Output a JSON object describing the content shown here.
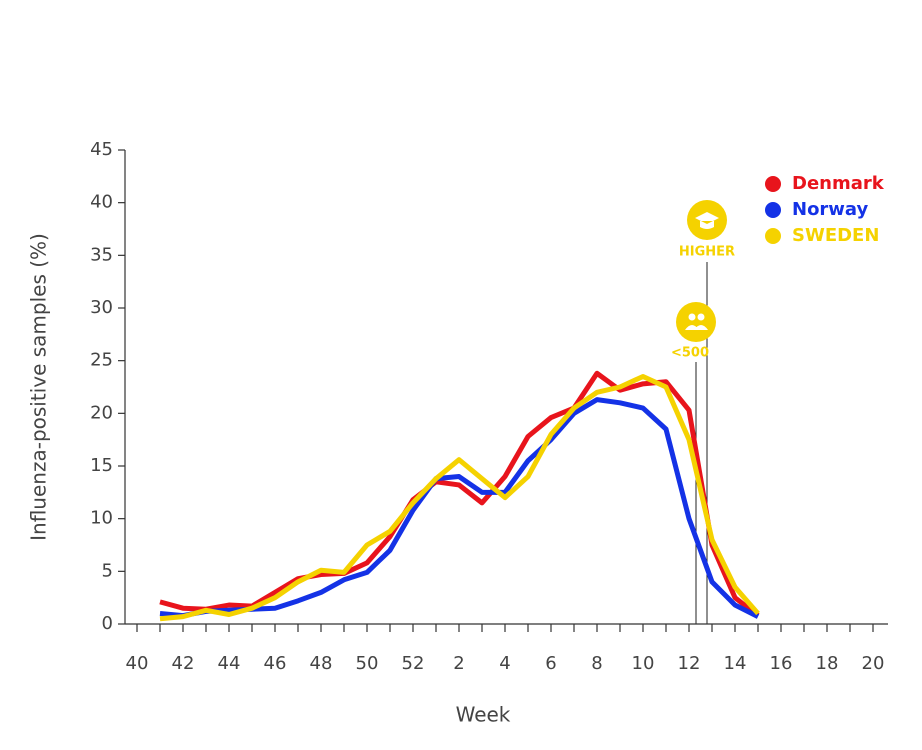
{
  "chart_data": {
    "type": "line",
    "y_label": "Influenza-positive samples (%)",
    "x_label": "Week",
    "categories": [
      "40",
      null,
      "42",
      null,
      "44",
      null,
      "46",
      null,
      "48",
      null,
      "50",
      null,
      "52",
      null,
      "2",
      null,
      "4",
      null,
      "6",
      null,
      "8",
      null,
      "10",
      null,
      "12",
      null,
      "14",
      null,
      "16",
      null,
      "18",
      null,
      "20"
    ],
    "series": [
      {
        "name": "Denmark",
        "color": "#e8141c",
        "values": [
          null,
          2.1,
          1.5,
          1.4,
          1.8,
          1.7,
          3.0,
          4.3,
          4.7,
          4.8,
          5.8,
          8.3,
          11.8,
          13.5,
          13.2,
          11.5,
          14.0,
          17.8,
          19.6,
          20.5,
          23.8,
          22.2,
          22.8,
          23.0,
          20.3,
          7.5,
          2.5,
          0.8,
          null,
          null,
          null,
          null,
          null
        ]
      },
      {
        "name": "Norway",
        "color": "#1432e6",
        "values": [
          null,
          1.0,
          0.8,
          1.2,
          1.3,
          1.4,
          1.5,
          2.2,
          3.0,
          4.2,
          4.9,
          7.0,
          10.8,
          13.8,
          14.0,
          12.5,
          12.5,
          15.5,
          17.5,
          20.0,
          21.3,
          21.0,
          20.5,
          18.5,
          10.0,
          4.0,
          1.8,
          0.7,
          null,
          null,
          null,
          null,
          null
        ]
      },
      {
        "name": "SWEDEN",
        "color": "#f5d200",
        "values": [
          null,
          0.5,
          0.7,
          1.3,
          0.9,
          1.5,
          2.5,
          4.0,
          5.1,
          4.9,
          7.5,
          8.8,
          11.5,
          13.8,
          15.6,
          13.8,
          12.0,
          14.0,
          18.0,
          20.5,
          22.0,
          22.5,
          23.5,
          22.5,
          17.5,
          8.0,
          3.5,
          1.0,
          null,
          null,
          null,
          null,
          null
        ]
      }
    ],
    "ylim": [
      0,
      45
    ],
    "yticks": [
      0,
      5,
      10,
      15,
      20,
      25,
      30,
      35,
      40,
      45
    ],
    "legend": "upper right",
    "annotations": [
      "HIGHER",
      "<500"
    ]
  }
}
